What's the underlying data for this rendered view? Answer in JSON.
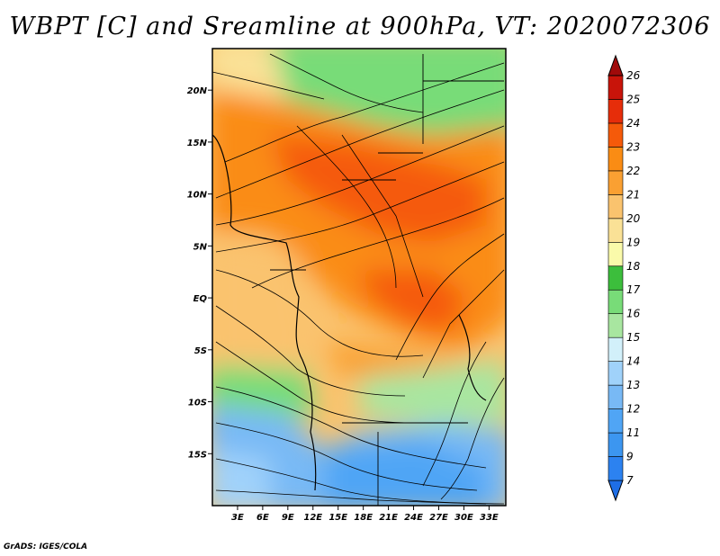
{
  "title": "WBPT [C] and Sreamline at 900hPa, VT: 2020072306",
  "credit": "GrADS: IGES/COLA",
  "map": {
    "lon_range": [
      0,
      35
    ],
    "lat_range": [
      -20,
      24
    ],
    "lon_ticks": [
      "3E",
      "6E",
      "9E",
      "12E",
      "15E",
      "18E",
      "21E",
      "24E",
      "27E",
      "30E",
      "33E"
    ],
    "lon_tick_values": [
      3,
      6,
      9,
      12,
      15,
      18,
      21,
      24,
      27,
      30,
      33
    ],
    "lat_ticks": [
      "20N",
      "15N",
      "10N",
      "5N",
      "EQ",
      "5S",
      "10S",
      "15S"
    ],
    "lat_tick_values": [
      20,
      15,
      10,
      5,
      0,
      -5,
      -10,
      -15
    ]
  },
  "colorbar": {
    "levels": [
      "7",
      "9",
      "11",
      "12",
      "13",
      "14",
      "15",
      "16",
      "17",
      "18",
      "19",
      "20",
      "21",
      "22",
      "23",
      "24",
      "25",
      "26"
    ],
    "colors": [
      "#1e6ee6",
      "#2c82f0",
      "#3c96f0",
      "#50a5f5",
      "#78b9f5",
      "#a0d2fa",
      "#d2f0fa",
      "#a8e6a0",
      "#78dc78",
      "#3cbe3c",
      "#fafaaa",
      "#fae196",
      "#fac36e",
      "#faa032",
      "#fa8c14",
      "#f55a0a",
      "#e62d0a",
      "#c8140a",
      "#a00a0a"
    ]
  }
}
